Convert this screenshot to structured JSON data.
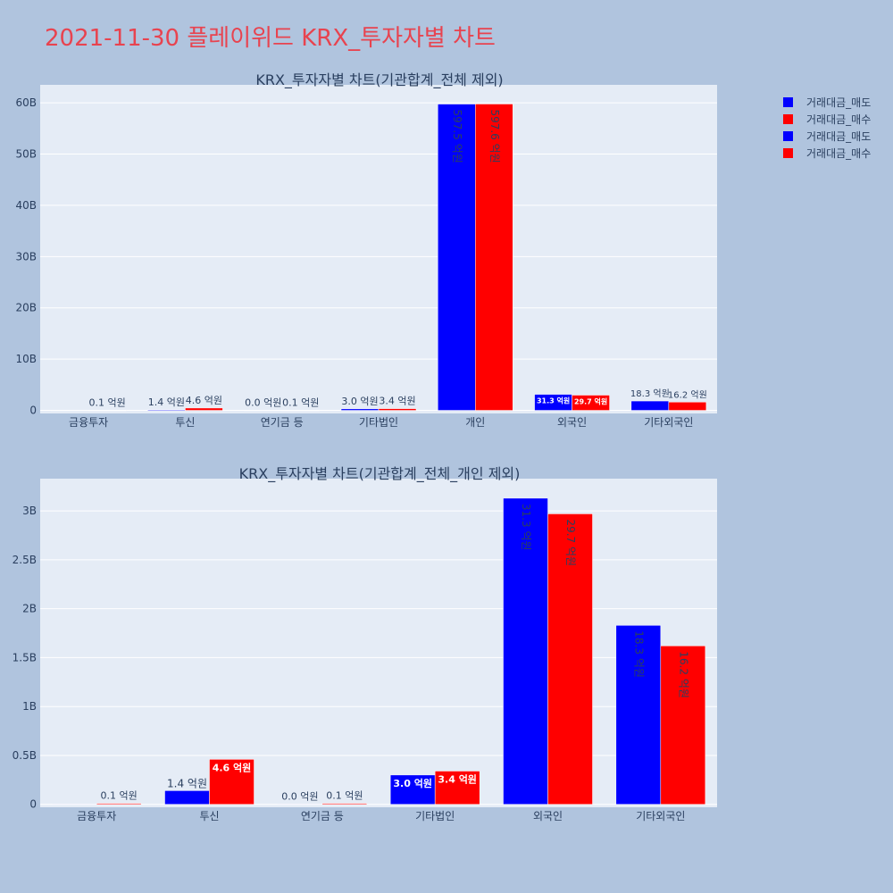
{
  "page": {
    "title": "2021-11-30 플레이위드 KRX_투자자별 차트"
  },
  "colors": {
    "page_bg": "#b0c4de",
    "plot_bg": "#e5ecf6",
    "grid": "#ffffff",
    "sell": "#0000ff",
    "buy": "#ff0000",
    "text": "#2a3f5f"
  },
  "legend": {
    "placement": "top-right",
    "entries": [
      {
        "label": "거래대금_매도",
        "color": "#0000ff"
      },
      {
        "label": "거래대금_매수",
        "color": "#ff0000"
      },
      {
        "label": "거래대금_매도",
        "color": "#0000ff"
      },
      {
        "label": "거래대금_매수",
        "color": "#ff0000"
      }
    ]
  },
  "chart_data": [
    {
      "type": "bar",
      "title": "KRX_투자자별 차트(기관합계_전체 제외)",
      "categories": [
        "금융투자",
        "투신",
        "연기금 등",
        "기타법인",
        "개인",
        "외국인",
        "기타외국인"
      ],
      "series": [
        {
          "name": "거래대금_매도",
          "color": "#0000ff",
          "values": [
            0.003,
            0.14,
            0.003,
            0.3,
            59.75,
            3.13,
            1.83
          ],
          "labels": [
            "",
            "1.4 억원",
            "0.0 억원",
            "3.0 억원",
            "597.5 억원",
            "31.3 억원",
            "18.3 억원"
          ]
        },
        {
          "name": "거래대금_매수",
          "color": "#ff0000",
          "values": [
            0.01,
            0.46,
            0.01,
            0.34,
            59.76,
            2.97,
            1.62
          ],
          "labels": [
            "0.1 억원",
            "4.6 억원",
            "0.1 억원",
            "3.4 억원",
            "597.6 억원",
            "29.7 억원",
            "16.2 억원"
          ]
        }
      ],
      "yunit": "B",
      "ylim": [
        -0.6,
        63.5
      ],
      "yticks": [
        0,
        10,
        20,
        30,
        40,
        50,
        60
      ],
      "ytick_labels": [
        "0",
        "10B",
        "20B",
        "30B",
        "40B",
        "50B",
        "60B"
      ],
      "grid": true
    },
    {
      "type": "bar",
      "title": "KRX_투자자별 차트(기관합계_전체_개인 제외)",
      "categories": [
        "금융투자",
        "투신",
        "연기금 등",
        "기타법인",
        "외국인",
        "기타외국인"
      ],
      "series": [
        {
          "name": "거래대금_매도",
          "color": "#0000ff",
          "values": [
            0.003,
            0.14,
            0.003,
            0.3,
            3.13,
            1.83
          ],
          "labels": [
            "",
            "1.4 억원",
            "0.0 억원",
            "3.0 억원",
            "31.3 억원",
            "18.3 억원"
          ]
        },
        {
          "name": "거래대금_매수",
          "color": "#ff0000",
          "values": [
            0.01,
            0.46,
            0.01,
            0.34,
            2.97,
            1.62
          ],
          "labels": [
            "0.1 억원",
            "4.6 억원",
            "0.1 억원",
            "3.4 억원",
            "29.7 억원",
            "16.2 억원"
          ]
        }
      ],
      "yunit": "B",
      "ylim": [
        -0.03,
        3.33
      ],
      "yticks": [
        0,
        0.5,
        1,
        1.5,
        2,
        2.5,
        3
      ],
      "ytick_labels": [
        "0",
        "0.5B",
        "1B",
        "1.5B",
        "2B",
        "2.5B",
        "3B"
      ],
      "grid": true
    }
  ]
}
